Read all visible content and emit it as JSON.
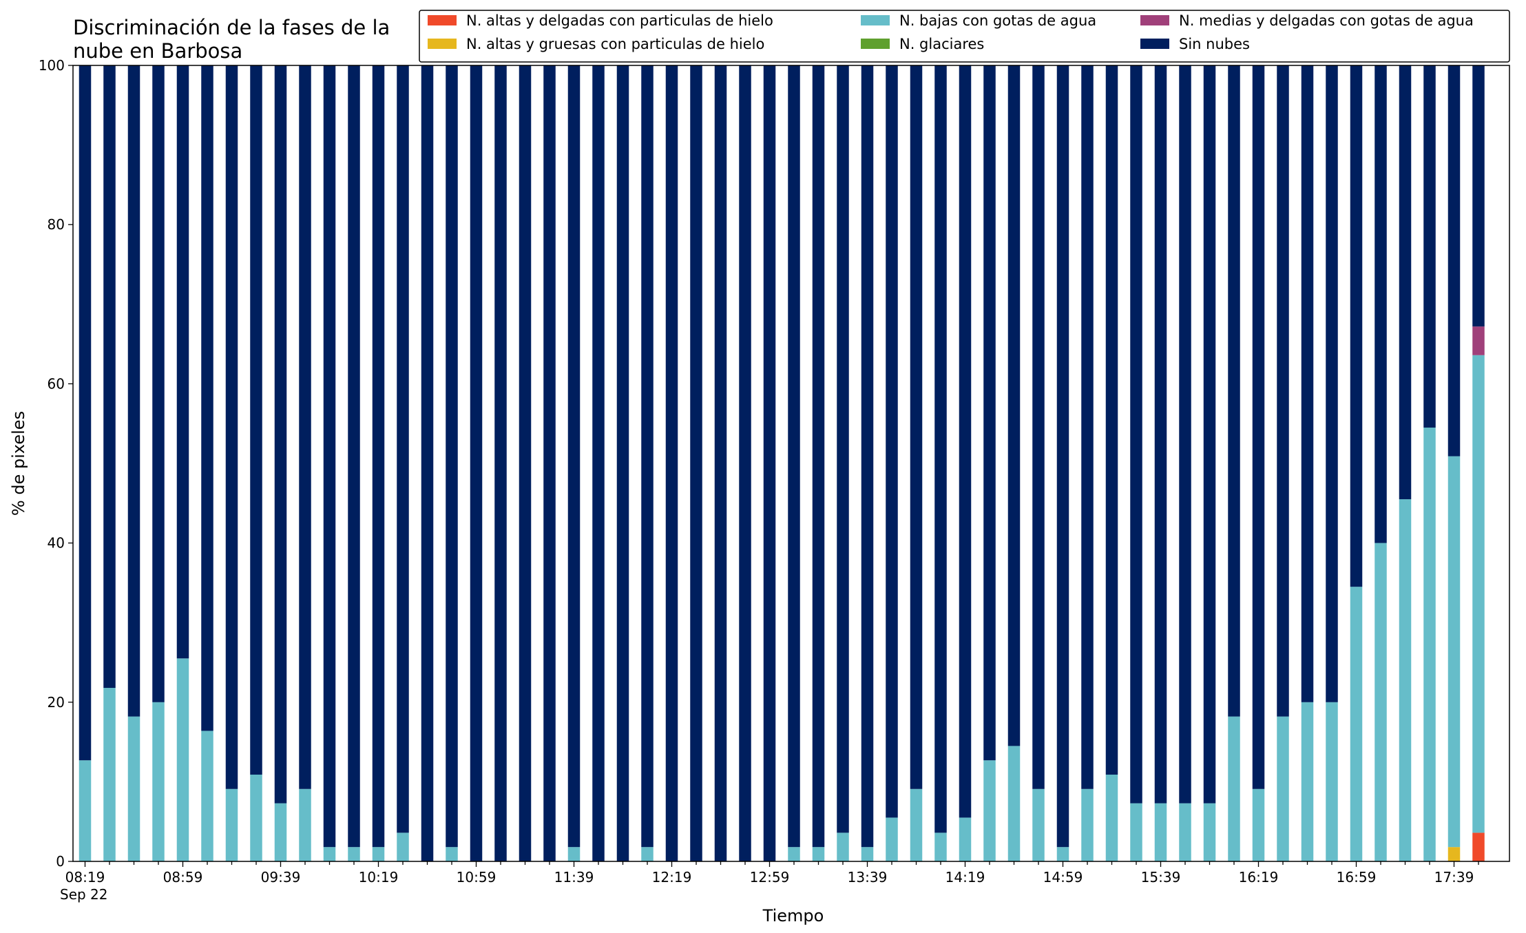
{
  "chart_data": {
    "type": "bar",
    "stacked": true,
    "title_lines": [
      "Discriminación de la fases de la",
      "nube en Barbosa"
    ],
    "xlabel": "Tiempo",
    "ylabel": "% de pixeles",
    "ylim": [
      0,
      100
    ],
    "yticks": [
      0,
      20,
      40,
      60,
      80,
      100
    ],
    "xtick_labels": [
      "08:19",
      "08:59",
      "09:39",
      "10:19",
      "10:59",
      "11:39",
      "12:19",
      "12:59",
      "13:39",
      "14:19",
      "14:59",
      "15:39",
      "16:19",
      "16:59",
      "17:39"
    ],
    "xtick_label_every": 4,
    "date_label": "Sep 22",
    "legend_position": "top-right",
    "categories": [
      "08:19",
      "08:29",
      "08:39",
      "08:49",
      "08:59",
      "09:09",
      "09:19",
      "09:29",
      "09:39",
      "09:49",
      "09:59",
      "10:09",
      "10:19",
      "10:29",
      "10:39",
      "10:49",
      "10:59",
      "11:09",
      "11:19",
      "11:29",
      "11:39",
      "11:49",
      "11:59",
      "12:09",
      "12:19",
      "12:29",
      "12:39",
      "12:49",
      "12:59",
      "13:09",
      "13:19",
      "13:29",
      "13:39",
      "13:49",
      "13:59",
      "14:09",
      "14:19",
      "14:29",
      "14:39",
      "14:49",
      "14:59",
      "15:09",
      "15:19",
      "15:29",
      "15:39",
      "15:49",
      "15:59",
      "16:09",
      "16:19",
      "16:29",
      "16:39",
      "16:49",
      "16:59",
      "17:09",
      "17:19",
      "17:29",
      "17:39",
      "17:49"
    ],
    "series": [
      {
        "name": "N. altas y delgadas con particulas de hielo",
        "color": "#f04a2a",
        "values": [
          0,
          0,
          0,
          0,
          0,
          0,
          0,
          0,
          0,
          0,
          0,
          0,
          0,
          0,
          0,
          0,
          0,
          0,
          0,
          0,
          0,
          0,
          0,
          0,
          0,
          0,
          0,
          0,
          0,
          0,
          0,
          0,
          0,
          0,
          0,
          0,
          0,
          0,
          0,
          0,
          0,
          0,
          0,
          0,
          0,
          0,
          0,
          0,
          0,
          0,
          0,
          0,
          0,
          0,
          0,
          0,
          0,
          3.6
        ]
      },
      {
        "name": "N. altas y gruesas con particulas de hielo",
        "color": "#e6b71e",
        "values": [
          0,
          0,
          0,
          0,
          0,
          0,
          0,
          0,
          0,
          0,
          0,
          0,
          0,
          0,
          0,
          0,
          0,
          0,
          0,
          0,
          0,
          0,
          0,
          0,
          0,
          0,
          0,
          0,
          0,
          0,
          0,
          0,
          0,
          0,
          0,
          0,
          0,
          0,
          0,
          0,
          0,
          0,
          0,
          0,
          0,
          0,
          0,
          0,
          0,
          0,
          0,
          0,
          0,
          0,
          0,
          0,
          1.8,
          0
        ]
      },
      {
        "name": "N. bajas con gotas de agua",
        "color": "#66bdc9",
        "values": [
          12.7,
          21.8,
          18.2,
          20.0,
          25.5,
          16.4,
          9.1,
          10.9,
          7.3,
          9.1,
          1.8,
          1.8,
          1.8,
          3.6,
          0,
          1.8,
          0,
          0,
          0,
          0,
          1.8,
          0,
          0,
          1.8,
          0,
          0,
          0,
          0,
          0,
          1.8,
          1.8,
          3.6,
          1.8,
          5.5,
          9.1,
          3.6,
          5.5,
          12.7,
          14.5,
          9.1,
          1.8,
          9.1,
          10.9,
          7.3,
          7.3,
          7.3,
          7.3,
          18.2,
          9.1,
          18.2,
          20.0,
          20.0,
          34.5,
          40.0,
          45.5,
          54.5,
          49.1,
          60.0
        ]
      },
      {
        "name": "N. glaciares",
        "color": "#5fa02e",
        "values": [
          0,
          0,
          0,
          0,
          0,
          0,
          0,
          0,
          0,
          0,
          0,
          0,
          0,
          0,
          0,
          0,
          0,
          0,
          0,
          0,
          0,
          0,
          0,
          0,
          0,
          0,
          0,
          0,
          0,
          0,
          0,
          0,
          0,
          0,
          0,
          0,
          0,
          0,
          0,
          0,
          0,
          0,
          0,
          0,
          0,
          0,
          0,
          0,
          0,
          0,
          0,
          0,
          0,
          0,
          0,
          0,
          0,
          0
        ]
      },
      {
        "name": "N. medias y delgadas con gotas de agua",
        "color": "#a0407a",
        "values": [
          0,
          0,
          0,
          0,
          0,
          0,
          0,
          0,
          0,
          0,
          0,
          0,
          0,
          0,
          0,
          0,
          0,
          0,
          0,
          0,
          0,
          0,
          0,
          0,
          0,
          0,
          0,
          0,
          0,
          0,
          0,
          0,
          0,
          0,
          0,
          0,
          0,
          0,
          0,
          0,
          0,
          0,
          0,
          0,
          0,
          0,
          0,
          0,
          0,
          0,
          0,
          0,
          0,
          0,
          0,
          0,
          0,
          3.6
        ]
      },
      {
        "name": "Sin nubes",
        "color": "#001f5e",
        "values": [
          87.3,
          78.2,
          81.8,
          80.0,
          74.5,
          83.6,
          90.9,
          89.1,
          92.7,
          90.9,
          98.2,
          98.2,
          98.2,
          96.4,
          100,
          98.2,
          100,
          100,
          100,
          100,
          98.2,
          100,
          100,
          98.2,
          100,
          100,
          100,
          100,
          100,
          98.2,
          98.2,
          96.4,
          98.2,
          94.5,
          90.9,
          96.4,
          94.5,
          87.3,
          85.5,
          90.9,
          98.2,
          90.9,
          89.1,
          92.7,
          92.7,
          92.7,
          92.7,
          81.8,
          90.9,
          81.8,
          80.0,
          80.0,
          65.5,
          60.0,
          54.5,
          45.5,
          49.1,
          32.8
        ]
      }
    ]
  }
}
